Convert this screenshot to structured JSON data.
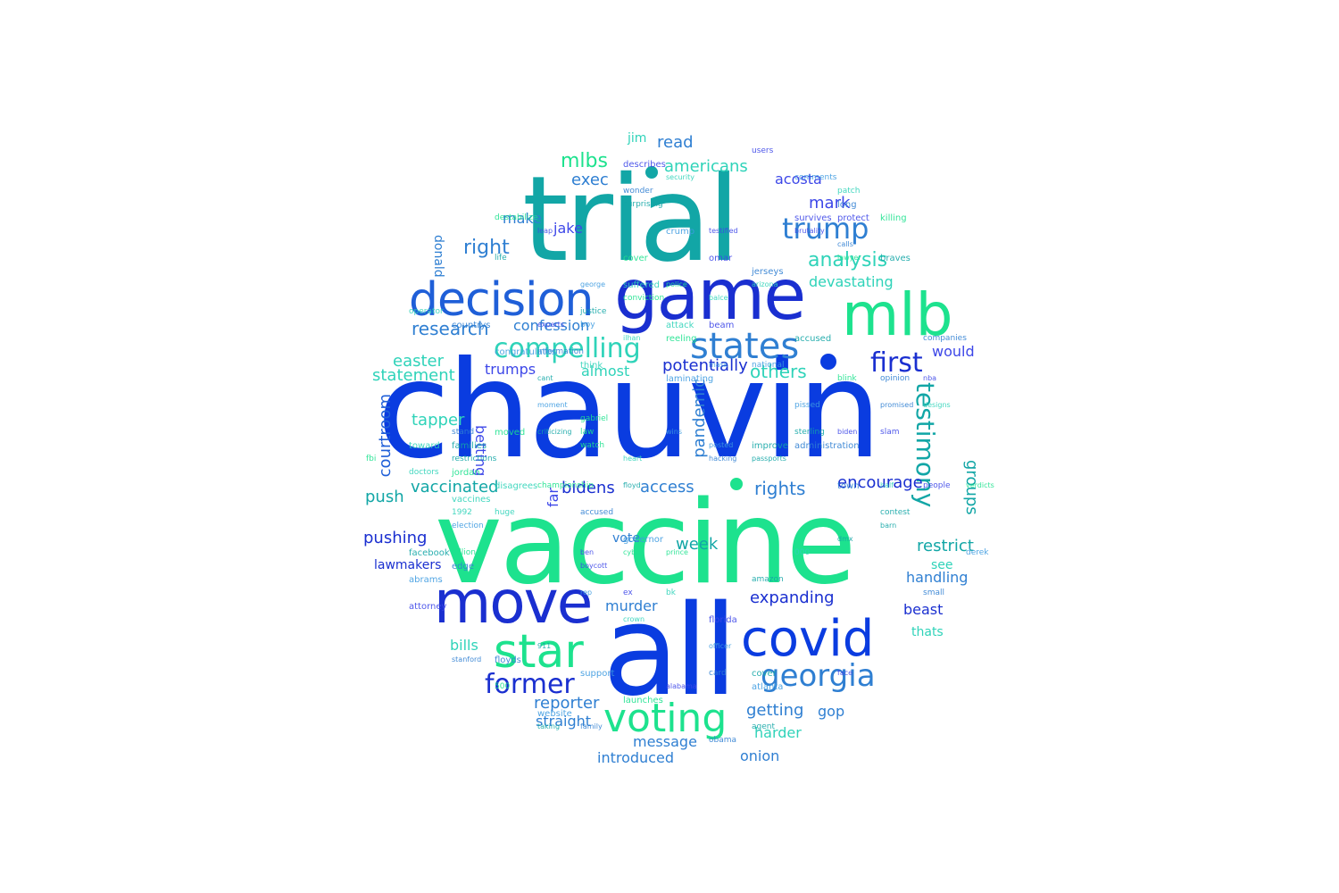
{
  "colors": {
    "blue": "#0a3ce0",
    "darkblue": "#1a2fd0",
    "teal": "#12a6a6",
    "green": "#1de28e",
    "steel": "#2f7fd2",
    "indigo": "#3d47e8",
    "aqua": "#2fd3b9",
    "sky": "#3d9be0"
  },
  "words": {
    "chauvin": "chauvin",
    "vaccine": "vaccine",
    "trial": "trial",
    "all": "all",
    "game": "game",
    "mlb": "mlb",
    "move": "move",
    "decision": "decision",
    "covid": "covid",
    "states": "states",
    "star": "star",
    "voting": "voting",
    "georgia": "georgia",
    "former": "former",
    "trump": "trump",
    "compelling": "compelling",
    "first": "first",
    "testimony": "testimony",
    "analysis": "analysis",
    "mlbs": "mlbs",
    "americans": "americans",
    "exec": "exec",
    "acosta": "acosta",
    "read": "read",
    "jim": "jim",
    "mark": "mark",
    "make": "make",
    "jake": "jake",
    "right": "right",
    "donald": "donald",
    "research": "research",
    "confession": "confession",
    "devastating": "devastating",
    "easter": "easter",
    "statement": "statement",
    "trumps": "trumps",
    "almost": "almost",
    "potentially": "potentially",
    "others": "others",
    "would": "would",
    "courtroom": "courtroom",
    "tapper": "tapper",
    "betting": "betting",
    "pandemic": "pandemic",
    "far": "far",
    "vaccinated": "vaccinated",
    "bidens": "bidens",
    "access": "access",
    "rights": "rights",
    "encourage": "encourage",
    "groups": "groups",
    "push": "push",
    "pushing": "pushing",
    "week": "week",
    "restrict": "restrict",
    "lawmakers": "lawmakers",
    "vote": "vote",
    "see": "see",
    "handling": "handling",
    "expanding": "expanding",
    "murder": "murder",
    "beast": "beast",
    "thats": "thats",
    "bills": "bills",
    "reporter": "reporter",
    "getting": "getting",
    "gop": "gop",
    "straight": "straight",
    "message": "message",
    "harder": "harder",
    "introduced": "introduced",
    "onion": "onion",
    "small_words": [
      "restrictions",
      "calls",
      "law",
      "protect",
      "1992",
      "congratulates",
      "dmx",
      "hacking",
      "cyber",
      "people",
      "arizona",
      "website",
      "life",
      "family",
      "gabriel",
      "ben",
      "suffered",
      "wins",
      "floyd",
      "jerseys",
      "blink",
      "survives",
      "attack",
      "posted",
      "contest",
      "small",
      "lawyer",
      "biden",
      "patch",
      "derek",
      "taking",
      "stand",
      "moved",
      "slam",
      "ilhan",
      "rep",
      "accused",
      "floyds",
      "launches",
      "ex",
      "half",
      "national",
      "justice",
      "edge",
      "reeling",
      "users",
      "huge",
      "crump",
      "families",
      "accused",
      "cover",
      "face",
      "security",
      "abrams",
      "facebook",
      "countrys",
      "police",
      "leap",
      "disagrees",
      "officer",
      "passports",
      "information",
      "destabilize",
      "experts",
      "crown",
      "george",
      "barn",
      "promised",
      "fbi",
      "describes",
      "toward",
      "laminating",
      "amazon",
      "companies",
      "killing",
      "testified",
      "balce",
      "comments",
      "sterling",
      "town",
      "championship",
      "omar",
      "000",
      "atlanta",
      "improve",
      "card",
      "jordan",
      "florida",
      "vaccines",
      "governor",
      "criticizing",
      "obama",
      "billion",
      "attorney",
      "doctors",
      "support",
      "surprising",
      "administration",
      "prince",
      "boycott",
      "operator",
      "mask",
      "agent",
      "wonder",
      "conviction",
      "beam",
      "think",
      "election",
      "911",
      "opinion",
      "500",
      "brutality",
      "heart",
      "pissed",
      "cant",
      "long",
      "watch",
      "alabama",
      "designs",
      "moment",
      "braves",
      "stanford",
      "verdicts",
      "nba",
      "bk",
      "boy",
      "cover"
    ]
  }
}
